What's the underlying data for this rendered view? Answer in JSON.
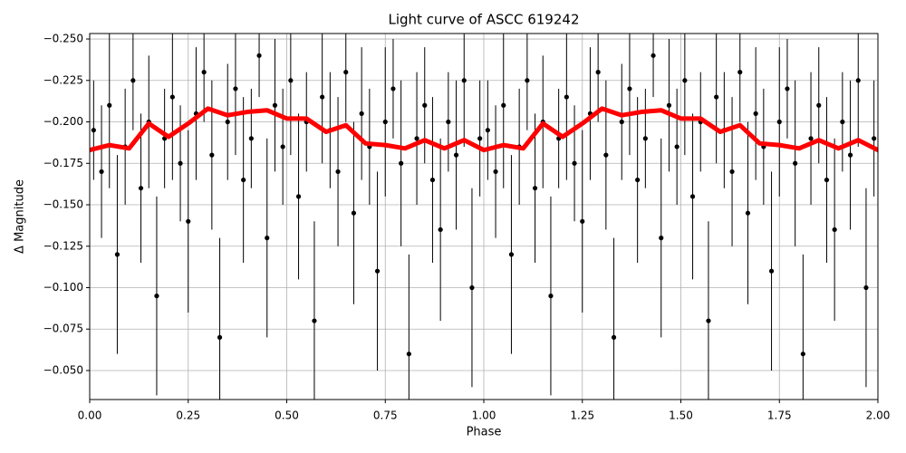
{
  "chart_data": {
    "type": "scatter",
    "title": "Light curve of ASCC 619242",
    "x_label": "Phase",
    "y_label": "Δ Magnitude",
    "xlim": [
      0,
      2
    ],
    "ylim": [
      -0.0325,
      -0.2533
    ],
    "xticks": [
      {
        "value": 0,
        "label": "0.00"
      },
      {
        "value": 0.25,
        "label": "0.25"
      },
      {
        "value": 0.5,
        "label": "0.50"
      },
      {
        "value": 0.75,
        "label": "0.75"
      },
      {
        "value": 1,
        "label": "1.00"
      },
      {
        "value": 1.25,
        "label": "1.25"
      },
      {
        "value": 1.5,
        "label": "1.50"
      },
      {
        "value": 1.75,
        "label": "1.75"
      },
      {
        "value": 2,
        "label": "2.00"
      }
    ],
    "yticks": [
      {
        "value": -0.25,
        "label": "−0.250"
      },
      {
        "value": -0.225,
        "label": "−0.225"
      },
      {
        "value": -0.2,
        "label": "−0.200"
      },
      {
        "value": -0.175,
        "label": "−0.175"
      },
      {
        "value": -0.15,
        "label": "−0.150"
      },
      {
        "value": -0.125,
        "label": "−0.125"
      },
      {
        "value": -0.1,
        "label": "−0.100"
      },
      {
        "value": -0.075,
        "label": "−0.075"
      },
      {
        "value": -0.05,
        "label": "−0.050"
      }
    ],
    "grid": true,
    "points": {
      "color": "#000000",
      "x": [
        0.01,
        0.03,
        0.05,
        0.07,
        0.09,
        0.11,
        0.13,
        0.15,
        0.17,
        0.19,
        0.21,
        0.23,
        0.25,
        0.27,
        0.29,
        0.31,
        0.33,
        0.35,
        0.37,
        0.39,
        0.41,
        0.43,
        0.45,
        0.47,
        0.49,
        0.51,
        0.53,
        0.55,
        0.57,
        0.59,
        0.61,
        0.63,
        0.65,
        0.67,
        0.69,
        0.71,
        0.73,
        0.75,
        0.77,
        0.79,
        0.81,
        0.83,
        0.85,
        0.87,
        0.89,
        0.91,
        0.93,
        0.95,
        0.97,
        0.99,
        1.01,
        1.03,
        1.05,
        1.07,
        1.09,
        1.11,
        1.13,
        1.15,
        1.17,
        1.19,
        1.21,
        1.23,
        1.25,
        1.27,
        1.29,
        1.31,
        1.33,
        1.35,
        1.37,
        1.39,
        1.41,
        1.43,
        1.45,
        1.47,
        1.49,
        1.51,
        1.53,
        1.55,
        1.57,
        1.59,
        1.61,
        1.63,
        1.65,
        1.67,
        1.69,
        1.71,
        1.73,
        1.75,
        1.77,
        1.79,
        1.81,
        1.83,
        1.85,
        1.87,
        1.89,
        1.91,
        1.93,
        1.95,
        1.97,
        1.99
      ],
      "values": [
        -0.195,
        -0.17,
        -0.21,
        -0.12,
        -0.185,
        -0.225,
        -0.16,
        -0.2,
        -0.095,
        -0.19,
        -0.215,
        -0.175,
        -0.14,
        -0.205,
        -0.23,
        -0.18,
        -0.07,
        -0.2,
        -0.22,
        -0.165,
        -0.19,
        -0.24,
        -0.13,
        -0.21,
        -0.185,
        -0.225,
        -0.155,
        -0.2,
        -0.08,
        -0.215,
        -0.195,
        -0.17,
        -0.23,
        -0.145,
        -0.205,
        -0.185,
        -0.11,
        -0.2,
        -0.22,
        -0.175,
        -0.06,
        -0.19,
        -0.21,
        -0.165,
        -0.135,
        -0.2,
        -0.18,
        -0.225,
        -0.1,
        -0.19,
        -0.195,
        -0.17,
        -0.21,
        -0.12,
        -0.185,
        -0.225,
        -0.16,
        -0.2,
        -0.095,
        -0.19,
        -0.215,
        -0.175,
        -0.14,
        -0.205,
        -0.23,
        -0.18,
        -0.07,
        -0.2,
        -0.22,
        -0.165,
        -0.19,
        -0.24,
        -0.13,
        -0.21,
        -0.185,
        -0.225,
        -0.155,
        -0.2,
        -0.08,
        -0.215,
        -0.195,
        -0.17,
        -0.23,
        -0.145,
        -0.205,
        -0.185,
        -0.11,
        -0.2,
        -0.22,
        -0.175,
        -0.06,
        -0.19,
        -0.21,
        -0.165,
        -0.135,
        -0.2,
        -0.18,
        -0.225,
        -0.1,
        -0.19
      ],
      "errors": [
        0.03,
        0.04,
        0.05,
        0.06,
        0.035,
        0.03,
        0.045,
        0.04,
        0.06,
        0.03,
        0.05,
        0.035,
        0.055,
        0.04,
        0.03,
        0.045,
        0.06,
        0.035,
        0.04,
        0.05,
        0.03,
        0.025,
        0.06,
        0.04,
        0.035,
        0.045,
        0.05,
        0.03,
        0.06,
        0.04,
        0.035,
        0.045,
        0.03,
        0.055,
        0.04,
        0.035,
        0.06,
        0.045,
        0.03,
        0.05,
        0.06,
        0.04,
        0.035,
        0.05,
        0.055,
        0.03,
        0.045,
        0.04,
        0.06,
        0.035,
        0.03,
        0.04,
        0.05,
        0.06,
        0.035,
        0.03,
        0.045,
        0.04,
        0.06,
        0.03,
        0.05,
        0.035,
        0.055,
        0.04,
        0.03,
        0.045,
        0.06,
        0.035,
        0.04,
        0.05,
        0.03,
        0.025,
        0.06,
        0.04,
        0.035,
        0.045,
        0.05,
        0.03,
        0.06,
        0.04,
        0.035,
        0.045,
        0.03,
        0.055,
        0.04,
        0.035,
        0.06,
        0.045,
        0.03,
        0.05,
        0.06,
        0.04,
        0.035,
        0.05,
        0.055,
        0.03,
        0.045,
        0.04,
        0.06,
        0.035
      ]
    },
    "line": {
      "color": "#ff0000",
      "x": [
        0,
        0.05,
        0.1,
        0.15,
        0.2,
        0.25,
        0.3,
        0.35,
        0.4,
        0.45,
        0.5,
        0.55,
        0.6,
        0.65,
        0.7,
        0.75,
        0.8,
        0.85,
        0.9,
        0.95,
        1,
        1.05,
        1.1,
        1.15,
        1.2,
        1.25,
        1.3,
        1.35,
        1.4,
        1.45,
        1.5,
        1.55,
        1.6,
        1.65,
        1.7,
        1.75,
        1.8,
        1.85,
        1.9,
        1.95,
        2
      ],
      "values": [
        -0.183,
        -0.186,
        -0.184,
        -0.199,
        -0.191,
        -0.199,
        -0.208,
        -0.204,
        -0.206,
        -0.207,
        -0.202,
        -0.202,
        -0.194,
        -0.198,
        -0.187,
        -0.186,
        -0.184,
        -0.189,
        -0.184,
        -0.189,
        -0.183,
        -0.186,
        -0.184,
        -0.199,
        -0.191,
        -0.199,
        -0.208,
        -0.204,
        -0.206,
        -0.207,
        -0.202,
        -0.202,
        -0.194,
        -0.198,
        -0.187,
        -0.186,
        -0.184,
        -0.189,
        -0.184,
        -0.189,
        -0.183
      ]
    }
  }
}
